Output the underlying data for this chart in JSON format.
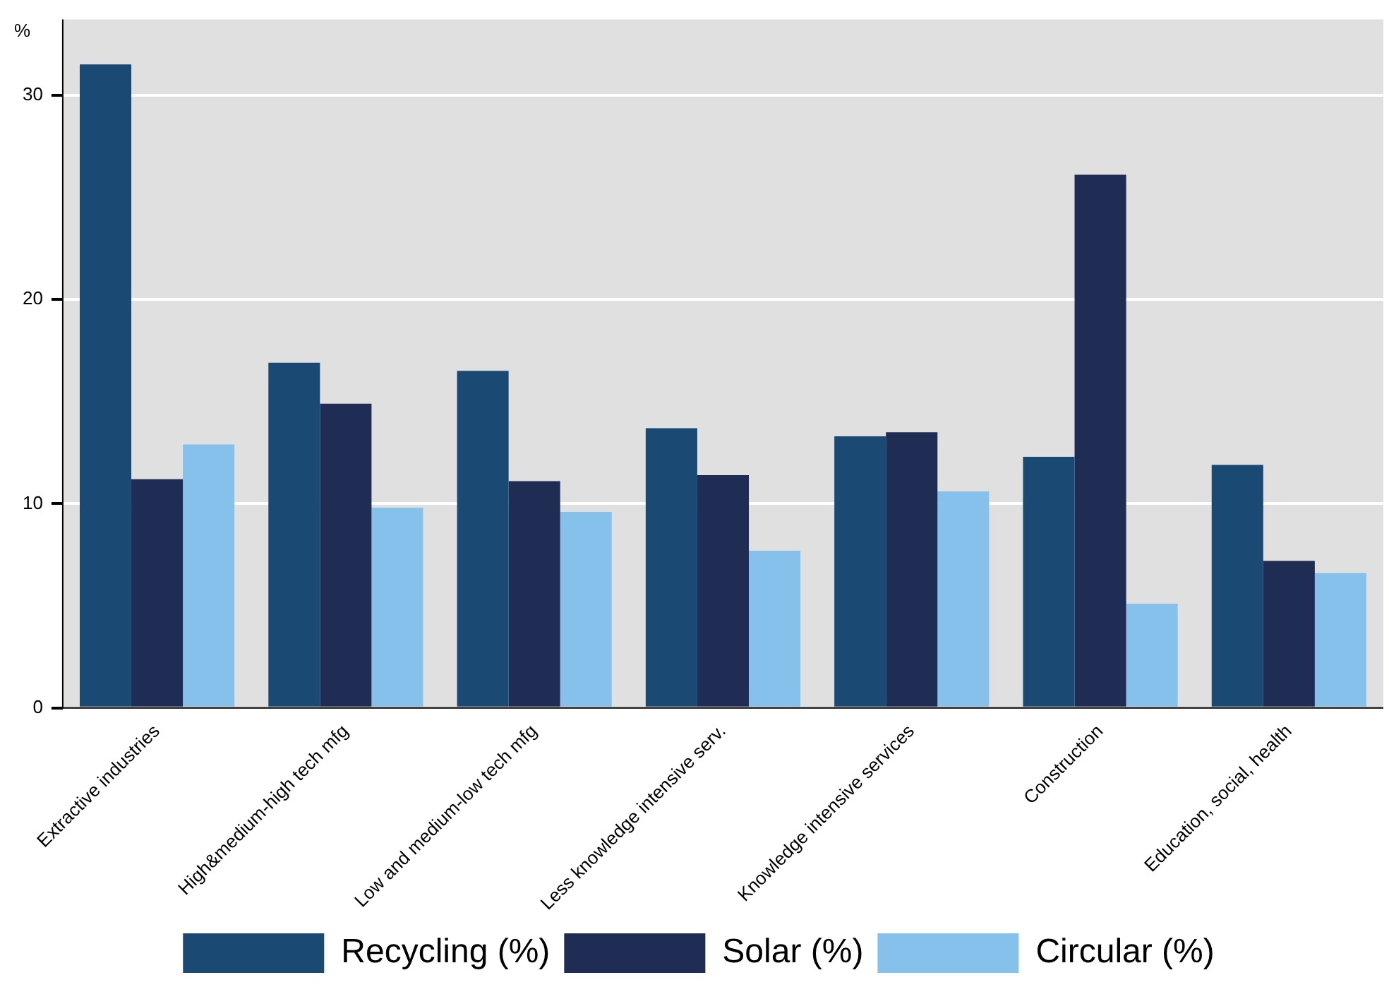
{
  "chart_data": {
    "type": "bar",
    "ylabel": "%",
    "categories": [
      "Extractive industries",
      "High&medium-high tech mfg",
      "Low and medium-low tech mfg",
      "Less knowledge intensive serv.",
      "Knowledge intensive services",
      "Construction",
      "Education, social, health"
    ],
    "series": [
      {
        "name": "Recycling (%)",
        "color": "#1a4a73",
        "values": [
          31.5,
          16.9,
          16.5,
          13.7,
          13.3,
          12.3,
          11.9
        ]
      },
      {
        "name": "Solar (%)",
        "color": "#1f2d54",
        "values": [
          11.2,
          14.9,
          11.1,
          11.4,
          13.5,
          26.1,
          7.2
        ]
      },
      {
        "name": "Circular (%)",
        "color": "#85c1ea",
        "values": [
          12.9,
          9.8,
          9.6,
          7.7,
          10.6,
          5.1,
          6.6
        ]
      }
    ],
    "ylim": [
      0,
      33.7
    ],
    "yticks": [
      0,
      10,
      20,
      30
    ],
    "grid": "y",
    "legend": "bottom"
  }
}
